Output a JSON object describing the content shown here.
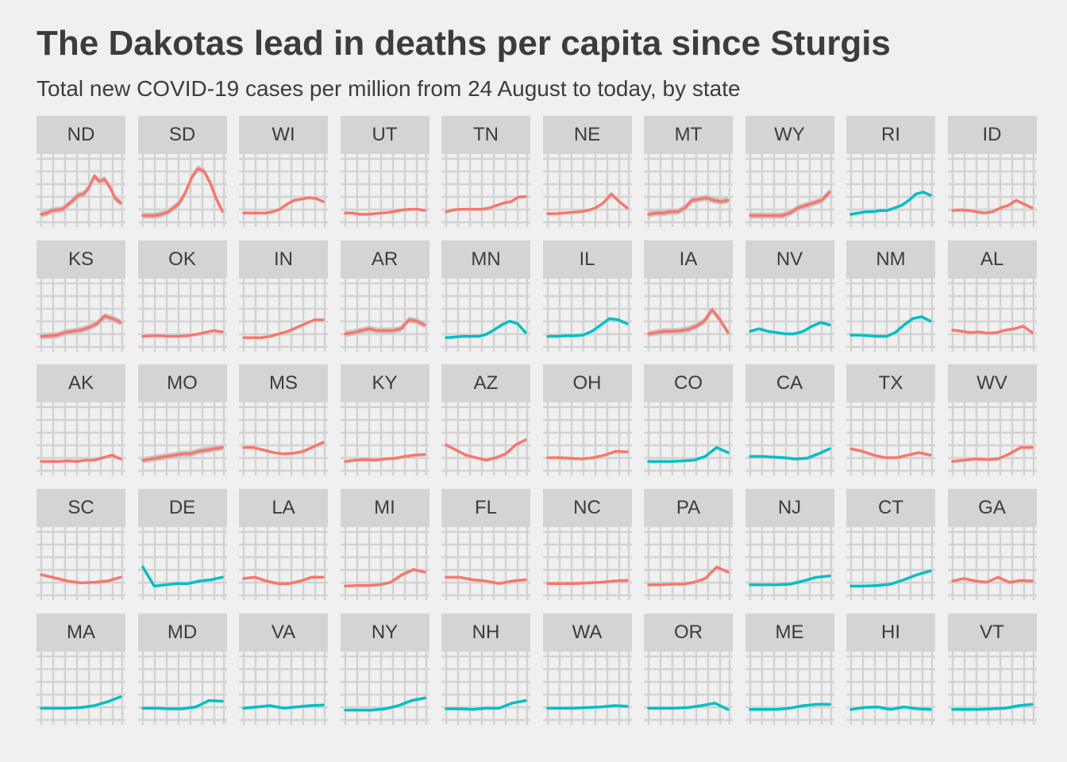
{
  "title": "The Dakotas lead in deaths per capita since Sturgis",
  "subtitle": "Total new COVID-19 cases per million from 24 August to today, by state",
  "colors": {
    "red": "#f8766d",
    "teal": "#00bfc4",
    "ribbon": "#c4c4c4",
    "grid": "#d2d2d2",
    "strip": "#d4d4d4"
  },
  "chart_data": {
    "type": "line",
    "layout": "small-multiples",
    "grid": true,
    "x_axis": "hidden",
    "y_axis": "hidden",
    "series": [
      {
        "name": "ND",
        "color": "red",
        "ribbon": true,
        "values": [
          0.2,
          0.22,
          0.26,
          0.27,
          0.28,
          0.35,
          0.42,
          0.5,
          0.52,
          0.62,
          0.8,
          0.72,
          0.75,
          0.62,
          0.45,
          0.38
        ]
      },
      {
        "name": "SD",
        "color": "red",
        "ribbon": true,
        "values": [
          0.18,
          0.18,
          0.18,
          0.2,
          0.23,
          0.3,
          0.38,
          0.55,
          0.78,
          0.92,
          0.88,
          0.7,
          0.45,
          0.25
        ]
      },
      {
        "name": "WI",
        "color": "red",
        "values": [
          0.22,
          0.22,
          0.22,
          0.22,
          0.24,
          0.28,
          0.36,
          0.42,
          0.44,
          0.46,
          0.45,
          0.4
        ]
      },
      {
        "name": "UT",
        "color": "red",
        "values": [
          0.22,
          0.22,
          0.2,
          0.2,
          0.21,
          0.22,
          0.23,
          0.25,
          0.27,
          0.28,
          0.28,
          0.26
        ]
      },
      {
        "name": "TN",
        "color": "red",
        "values": [
          0.24,
          0.27,
          0.28,
          0.28,
          0.28,
          0.28,
          0.3,
          0.34,
          0.38,
          0.4,
          0.47,
          0.48
        ]
      },
      {
        "name": "NE",
        "color": "red",
        "values": [
          0.21,
          0.21,
          0.22,
          0.23,
          0.24,
          0.26,
          0.3,
          0.38,
          0.52,
          0.4,
          0.3
        ]
      },
      {
        "name": "MT",
        "color": "red",
        "ribbon": true,
        "values": [
          0.2,
          0.22,
          0.22,
          0.24,
          0.24,
          0.3,
          0.42,
          0.44,
          0.46,
          0.42,
          0.4,
          0.42
        ]
      },
      {
        "name": "WY",
        "color": "red",
        "ribbon": true,
        "values": [
          0.18,
          0.18,
          0.18,
          0.18,
          0.18,
          0.22,
          0.3,
          0.34,
          0.38,
          0.42,
          0.55
        ]
      },
      {
        "name": "RI",
        "color": "teal",
        "values": [
          0.2,
          0.22,
          0.24,
          0.24,
          0.26,
          0.26,
          0.3,
          0.34,
          0.42,
          0.52,
          0.55,
          0.5
        ]
      },
      {
        "name": "ID",
        "color": "red",
        "values": [
          0.26,
          0.27,
          0.26,
          0.24,
          0.22,
          0.24,
          0.3,
          0.34,
          0.42,
          0.36,
          0.3
        ]
      },
      {
        "name": "KS",
        "color": "red",
        "ribbon": true,
        "values": [
          0.24,
          0.25,
          0.26,
          0.3,
          0.32,
          0.34,
          0.38,
          0.44,
          0.56,
          0.52,
          0.46
        ]
      },
      {
        "name": "OK",
        "color": "red",
        "values": [
          0.24,
          0.25,
          0.25,
          0.24,
          0.24,
          0.25,
          0.27,
          0.3,
          0.33,
          0.31
        ]
      },
      {
        "name": "IN",
        "color": "red",
        "values": [
          0.22,
          0.22,
          0.22,
          0.24,
          0.28,
          0.32,
          0.38,
          0.44,
          0.5,
          0.5
        ]
      },
      {
        "name": "AR",
        "color": "red",
        "ribbon": true,
        "values": [
          0.28,
          0.3,
          0.33,
          0.36,
          0.33,
          0.33,
          0.33,
          0.36,
          0.5,
          0.48,
          0.42
        ]
      },
      {
        "name": "MN",
        "color": "teal",
        "values": [
          0.22,
          0.23,
          0.24,
          0.24,
          0.24,
          0.27,
          0.34,
          0.42,
          0.48,
          0.44,
          0.3
        ]
      },
      {
        "name": "IL",
        "color": "teal",
        "values": [
          0.24,
          0.24,
          0.25,
          0.25,
          0.26,
          0.32,
          0.42,
          0.52,
          0.5,
          0.44
        ]
      },
      {
        "name": "IA",
        "color": "red",
        "ribbon": true,
        "values": [
          0.28,
          0.3,
          0.32,
          0.32,
          0.33,
          0.35,
          0.4,
          0.48,
          0.66,
          0.5,
          0.3
        ]
      },
      {
        "name": "NV",
        "color": "teal",
        "values": [
          0.32,
          0.36,
          0.32,
          0.3,
          0.28,
          0.28,
          0.32,
          0.4,
          0.46,
          0.42
        ]
      },
      {
        "name": "NM",
        "color": "teal",
        "values": [
          0.26,
          0.26,
          0.25,
          0.24,
          0.24,
          0.3,
          0.42,
          0.52,
          0.55,
          0.48
        ]
      },
      {
        "name": "AL",
        "color": "red",
        "values": [
          0.34,
          0.32,
          0.3,
          0.31,
          0.29,
          0.3,
          0.34,
          0.36,
          0.4,
          0.3
        ]
      },
      {
        "name": "AK",
        "color": "red",
        "values": [
          0.22,
          0.22,
          0.22,
          0.23,
          0.22,
          0.24,
          0.24,
          0.28,
          0.32,
          0.26
        ]
      },
      {
        "name": "MO",
        "color": "red",
        "ribbon": true,
        "values": [
          0.24,
          0.26,
          0.28,
          0.3,
          0.32,
          0.34,
          0.34,
          0.38,
          0.4,
          0.42,
          0.44
        ]
      },
      {
        "name": "MS",
        "color": "red",
        "values": [
          0.44,
          0.44,
          0.4,
          0.36,
          0.34,
          0.35,
          0.38,
          0.45,
          0.52
        ]
      },
      {
        "name": "KY",
        "color": "red",
        "values": [
          0.22,
          0.24,
          0.25,
          0.24,
          0.26,
          0.27,
          0.3,
          0.32,
          0.33
        ]
      },
      {
        "name": "AZ",
        "color": "red",
        "values": [
          0.48,
          0.4,
          0.32,
          0.28,
          0.24,
          0.28,
          0.34,
          0.48,
          0.56
        ]
      },
      {
        "name": "OH",
        "color": "red",
        "values": [
          0.28,
          0.28,
          0.27,
          0.26,
          0.28,
          0.32,
          0.38,
          0.37
        ]
      },
      {
        "name": "CO",
        "color": "teal",
        "values": [
          0.22,
          0.22,
          0.22,
          0.23,
          0.24,
          0.3,
          0.44,
          0.36
        ]
      },
      {
        "name": "CA",
        "color": "teal",
        "values": [
          0.3,
          0.3,
          0.29,
          0.28,
          0.26,
          0.27,
          0.34,
          0.42
        ]
      },
      {
        "name": "TX",
        "color": "red",
        "values": [
          0.42,
          0.38,
          0.32,
          0.28,
          0.28,
          0.32,
          0.36,
          0.32
        ]
      },
      {
        "name": "WV",
        "color": "red",
        "values": [
          0.22,
          0.24,
          0.26,
          0.25,
          0.26,
          0.34,
          0.44,
          0.44
        ]
      },
      {
        "name": "SC",
        "color": "red",
        "values": [
          0.4,
          0.35,
          0.3,
          0.27,
          0.28,
          0.3,
          0.36
        ]
      },
      {
        "name": "DE",
        "color": "teal",
        "values": [
          0.52,
          0.22,
          0.24,
          0.26,
          0.26,
          0.3,
          0.32,
          0.36
        ]
      },
      {
        "name": "LA",
        "color": "red",
        "values": [
          0.34,
          0.36,
          0.3,
          0.26,
          0.26,
          0.3,
          0.36,
          0.36
        ]
      },
      {
        "name": "MI",
        "color": "red",
        "values": [
          0.22,
          0.23,
          0.23,
          0.24,
          0.28,
          0.4,
          0.48,
          0.44
        ]
      },
      {
        "name": "FL",
        "color": "red",
        "values": [
          0.36,
          0.36,
          0.32,
          0.3,
          0.26,
          0.3,
          0.32
        ]
      },
      {
        "name": "NC",
        "color": "red",
        "values": [
          0.26,
          0.26,
          0.26,
          0.27,
          0.28,
          0.3,
          0.31
        ]
      },
      {
        "name": "PA",
        "color": "red",
        "values": [
          0.24,
          0.24,
          0.25,
          0.25,
          0.28,
          0.34,
          0.52,
          0.44
        ]
      },
      {
        "name": "NJ",
        "color": "teal",
        "values": [
          0.24,
          0.24,
          0.24,
          0.25,
          0.3,
          0.36,
          0.38
        ]
      },
      {
        "name": "CT",
        "color": "teal",
        "values": [
          0.22,
          0.22,
          0.23,
          0.25,
          0.32,
          0.4,
          0.46
        ]
      },
      {
        "name": "GA",
        "color": "red",
        "values": [
          0.3,
          0.34,
          0.3,
          0.28,
          0.36,
          0.28,
          0.31,
          0.3
        ]
      },
      {
        "name": "MA",
        "color": "teal",
        "values": [
          0.26,
          0.26,
          0.26,
          0.27,
          0.3,
          0.36,
          0.44
        ]
      },
      {
        "name": "MD",
        "color": "teal",
        "values": [
          0.26,
          0.26,
          0.25,
          0.25,
          0.28,
          0.38,
          0.37
        ]
      },
      {
        "name": "VA",
        "color": "teal",
        "values": [
          0.26,
          0.28,
          0.3,
          0.26,
          0.28,
          0.3,
          0.31
        ]
      },
      {
        "name": "NY",
        "color": "teal",
        "values": [
          0.23,
          0.23,
          0.23,
          0.25,
          0.3,
          0.38,
          0.42
        ]
      },
      {
        "name": "NH",
        "color": "teal",
        "values": [
          0.25,
          0.25,
          0.24,
          0.26,
          0.26,
          0.34,
          0.38
        ]
      },
      {
        "name": "WA",
        "color": "teal",
        "values": [
          0.26,
          0.26,
          0.26,
          0.27,
          0.28,
          0.3,
          0.29
        ]
      },
      {
        "name": "OR",
        "color": "teal",
        "values": [
          0.26,
          0.26,
          0.26,
          0.27,
          0.3,
          0.34,
          0.24
        ]
      },
      {
        "name": "ME",
        "color": "teal",
        "values": [
          0.24,
          0.24,
          0.24,
          0.26,
          0.3,
          0.32,
          0.32
        ]
      },
      {
        "name": "HI",
        "color": "teal",
        "values": [
          0.24,
          0.27,
          0.28,
          0.24,
          0.28,
          0.25,
          0.24
        ]
      },
      {
        "name": "VT",
        "color": "teal",
        "values": [
          0.24,
          0.24,
          0.24,
          0.25,
          0.26,
          0.3,
          0.32
        ]
      }
    ]
  }
}
